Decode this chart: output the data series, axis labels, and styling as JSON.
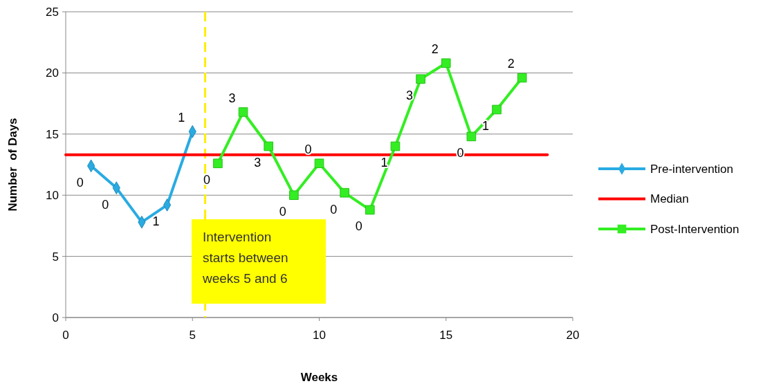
{
  "chart_data": {
    "type": "line",
    "xlabel": "Weeks",
    "ylabel": "Number  of Days",
    "xlim": [
      0,
      20
    ],
    "xticks": [
      0,
      5,
      10,
      15,
      20
    ],
    "ylim": [
      0,
      25
    ],
    "yticks": [
      0,
      5,
      10,
      15,
      20,
      25
    ],
    "grid": "y",
    "legend": "right",
    "series": [
      {
        "name": "Pre-intervention",
        "color": "#29abe2",
        "marker": "diamond",
        "x": [
          1,
          2,
          3,
          4,
          5
        ],
        "values": [
          12.4,
          10.6,
          7.8,
          9.2,
          15.2
        ]
      },
      {
        "name": "Median",
        "color": "#ff0000",
        "marker": "none",
        "x": [
          0,
          19
        ],
        "values": [
          13.3,
          13.3
        ]
      },
      {
        "name": "Post-Intervention",
        "color": "#33ee22",
        "marker": "square",
        "x": [
          6,
          7,
          8,
          9,
          10,
          11,
          12,
          13,
          14,
          15,
          16,
          17,
          18
        ],
        "values": [
          12.6,
          16.8,
          14.0,
          10.0,
          12.6,
          10.2,
          8.8,
          14.0,
          19.5,
          20.8,
          14.8,
          17.0,
          19.6
        ]
      }
    ],
    "ref_lines": [
      {
        "axis": "x",
        "value": 5.5,
        "color": "#ffee00",
        "line_style": "dashed"
      }
    ],
    "annotations": [
      "Intervention starts between weeks 5 and 6",
      {
        "text": "0",
        "x": 1,
        "y": 12.4
      },
      {
        "text": "0",
        "x": 2,
        "y": 10.6
      },
      {
        "text": "1",
        "x": 4,
        "y": 9.2
      },
      {
        "text": "1",
        "x": 5,
        "y": 15.2
      },
      {
        "text": "0",
        "x": 6,
        "y": 12.6
      },
      {
        "text": "3",
        "x": 7,
        "y": 16.8
      },
      {
        "text": "3",
        "x": 8,
        "y": 14.0
      },
      {
        "text": "0",
        "x": 9,
        "y": 10.0
      },
      {
        "text": "0",
        "x": 10,
        "y": 12.6
      },
      {
        "text": "0",
        "x": 11,
        "y": 10.2
      },
      {
        "text": "0",
        "x": 12,
        "y": 8.8
      },
      {
        "text": "1",
        "x": 13,
        "y": 14.0
      },
      {
        "text": "3",
        "x": 14,
        "y": 19.5
      },
      {
        "text": "2",
        "x": 15,
        "y": 20.8
      },
      {
        "text": "0",
        "x": 16,
        "y": 14.8
      },
      {
        "text": "1",
        "x": 17,
        "y": 17.0
      },
      {
        "text": "2",
        "x": 18,
        "y": 19.6
      }
    ]
  }
}
